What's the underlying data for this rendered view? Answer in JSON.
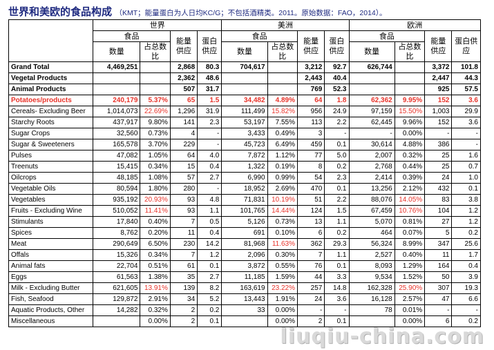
{
  "title": {
    "main": "世界和美欧的食品构成",
    "note": "（KMT；能量蛋白为人日均KC/G；不包括酒精类。2011。原始数据：FAO，2014）。"
  },
  "header": {
    "regions": [
      "世界",
      "美洲",
      "欧洲"
    ],
    "food_label": "食品",
    "sub_labels": [
      "数量",
      "占总数比",
      "能量供应",
      "蛋白供应"
    ]
  },
  "rows": [
    {
      "label": "Grand Total",
      "style": "bold",
      "cells": [
        "4,469,251",
        "",
        "2,868",
        "80.3",
        "704,617",
        "",
        "3,212",
        "92.7",
        "626,744",
        "",
        "3,372",
        "101.8"
      ]
    },
    {
      "label": "Vegetal Products",
      "style": "bold",
      "cells": [
        "",
        "",
        "2,362",
        "48.6",
        "",
        "",
        "2,443",
        "40.4",
        "",
        "",
        "2,447",
        "44.3"
      ]
    },
    {
      "label": "Animal Products",
      "style": "bold",
      "cells": [
        "",
        "",
        "507",
        "31.7",
        "",
        "",
        "769",
        "52.3",
        "",
        "",
        "925",
        "57.5"
      ]
    },
    {
      "label": "Potatoes/products",
      "style": "red",
      "cells": [
        "240,179",
        "5.37%",
        "65",
        "1.5",
        "34,482",
        "4.89%",
        "64",
        "1.8",
        "62,362",
        "9.95%",
        "152",
        "3.6"
      ]
    },
    {
      "label": "Cereals- Excluding Beer",
      "style": "",
      "cells": [
        "1,014,073",
        "22.69%",
        "1,296",
        "31.9",
        "111,499",
        "15.82%",
        "956",
        "24.9",
        "97,159",
        "15.50%",
        "1,003",
        "29.9"
      ],
      "red": [
        1,
        5,
        9
      ]
    },
    {
      "label": "Starchy Roots",
      "style": "",
      "cells": [
        "437,917",
        "9.80%",
        "141",
        "2.3",
        "53,197",
        "7.55%",
        "113",
        "2.2",
        "62,445",
        "9.96%",
        "152",
        "3.6"
      ]
    },
    {
      "label": "Sugar Crops",
      "style": "",
      "cells": [
        "32,560",
        "0.73%",
        "4",
        "-",
        "3,433",
        "0.49%",
        "3",
        "-",
        "-",
        "0.00%",
        "-",
        "-"
      ]
    },
    {
      "label": "Sugar & Sweeteners",
      "style": "",
      "cells": [
        "165,578",
        "3.70%",
        "229",
        "-",
        "45,723",
        "6.49%",
        "459",
        "0.1",
        "30,614",
        "4.88%",
        "386",
        "-"
      ]
    },
    {
      "label": "Pulses",
      "style": "",
      "cells": [
        "47,082",
        "1.05%",
        "64",
        "4.0",
        "7,872",
        "1.12%",
        "77",
        "5.0",
        "2,007",
        "0.32%",
        "25",
        "1.6"
      ]
    },
    {
      "label": "Treenuts",
      "style": "",
      "cells": [
        "15,415",
        "0.34%",
        "15",
        "0.4",
        "1,322",
        "0.19%",
        "8",
        "0.2",
        "2,768",
        "0.44%",
        "25",
        "0.7"
      ]
    },
    {
      "label": "Oilcrops",
      "style": "",
      "cells": [
        "48,185",
        "1.08%",
        "57",
        "2.7",
        "6,990",
        "0.99%",
        "54",
        "2.3",
        "2,414",
        "0.39%",
        "24",
        "1.0"
      ]
    },
    {
      "label": "Vegetable Oils",
      "style": "",
      "cells": [
        "80,594",
        "1.80%",
        "280",
        "-",
        "18,952",
        "2.69%",
        "470",
        "0.1",
        "13,256",
        "2.12%",
        "432",
        "0.1"
      ]
    },
    {
      "label": "Vegetables",
      "style": "",
      "cells": [
        "935,192",
        "20.93%",
        "93",
        "4.8",
        "71,831",
        "10.19%",
        "51",
        "2.2",
        "88,076",
        "14.05%",
        "83",
        "3.8"
      ],
      "red": [
        1,
        5,
        9
      ]
    },
    {
      "label": "Fruits - Excluding Wine",
      "style": "",
      "cells": [
        "510,052",
        "11.41%",
        "93",
        "1.1",
        "101,765",
        "14.44%",
        "124",
        "1.5",
        "67,459",
        "10.76%",
        "104",
        "1.2"
      ],
      "red": [
        1,
        5,
        9
      ]
    },
    {
      "label": "Stimulants",
      "style": "",
      "cells": [
        "17,840",
        "0.40%",
        "7",
        "0.5",
        "5,126",
        "0.73%",
        "13",
        "1.1",
        "5,070",
        "0.81%",
        "27",
        "1.2"
      ]
    },
    {
      "label": "Spices",
      "style": "",
      "cells": [
        "8,762",
        "0.20%",
        "11",
        "0.4",
        "691",
        "0.10%",
        "6",
        "0.2",
        "464",
        "0.07%",
        "5",
        "0.2"
      ]
    },
    {
      "label": "Meat",
      "style": "",
      "cells": [
        "290,649",
        "6.50%",
        "230",
        "14.2",
        "81,968",
        "11.63%",
        "362",
        "29.3",
        "56,324",
        "8.99%",
        "347",
        "25.6"
      ],
      "red": [
        5
      ]
    },
    {
      "label": "Offals",
      "style": "",
      "cells": [
        "15,326",
        "0.34%",
        "7",
        "1.2",
        "2,096",
        "0.30%",
        "7",
        "1.1",
        "2,527",
        "0.40%",
        "11",
        "1.7"
      ]
    },
    {
      "label": "Animal fats",
      "style": "",
      "cells": [
        "22,704",
        "0.51%",
        "61",
        "0.1",
        "3,872",
        "0.55%",
        "76",
        "0.1",
        "8,093",
        "1.29%",
        "164",
        "0.4"
      ]
    },
    {
      "label": "Eggs",
      "style": "",
      "cells": [
        "61,563",
        "1.38%",
        "35",
        "2.7",
        "11,185",
        "1.59%",
        "44",
        "3.3",
        "9,534",
        "1.52%",
        "50",
        "3.9"
      ]
    },
    {
      "label": "Milk - Excluding Butter",
      "style": "",
      "cells": [
        "621,605",
        "13.91%",
        "139",
        "8.2",
        "163,619",
        "23.22%",
        "257",
        "14.8",
        "162,328",
        "25.90%",
        "307",
        "19.3"
      ],
      "red": [
        1,
        5,
        9
      ]
    },
    {
      "label": "Fish, Seafood",
      "style": "",
      "cells": [
        "129,872",
        "2.91%",
        "34",
        "5.2",
        "13,443",
        "1.91%",
        "24",
        "3.6",
        "16,128",
        "2.57%",
        "47",
        "6.6"
      ]
    },
    {
      "label": "Aquatic Products, Other",
      "style": "",
      "cells": [
        "14,282",
        "0.32%",
        "2",
        "0.2",
        "33",
        "0.00%",
        "-",
        "-",
        "78",
        "0.01%",
        "-",
        "-"
      ]
    },
    {
      "label": "Miscellaneous",
      "style": "",
      "cells": [
        "",
        "0.00%",
        "2",
        "0.1",
        "",
        "0.00%",
        "2",
        "0.1",
        "",
        "0.00%",
        "6",
        "0.2"
      ]
    }
  ],
  "watermark": "liuqiu-china.com"
}
